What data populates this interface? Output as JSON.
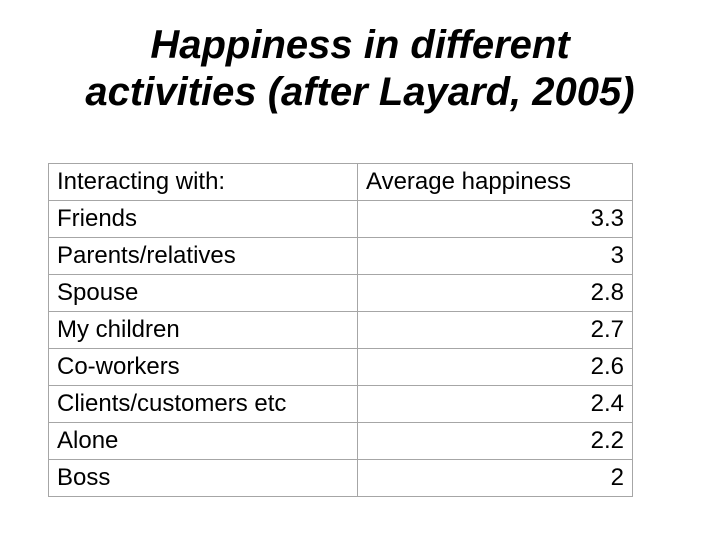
{
  "slide": {
    "title_line1": "Happiness in different",
    "title_line2": "activities (after Layard, 2005)"
  },
  "table": {
    "headers": [
      "Interacting with:",
      "Average happiness"
    ],
    "rows": [
      {
        "label": "Friends",
        "value": "3.3"
      },
      {
        "label": "Parents/relatives",
        "value": "3"
      },
      {
        "label": "Spouse",
        "value": "2.8"
      },
      {
        "label": "My children",
        "value": "2.7"
      },
      {
        "label": "Co-workers",
        "value": "2.6"
      },
      {
        "label": "Clients/customers etc",
        "value": "2.4"
      },
      {
        "label": "Alone",
        "value": "2.2"
      },
      {
        "label": "Boss",
        "value": "2"
      }
    ]
  },
  "colors": {
    "background": "#ffffff",
    "text": "#000000",
    "table_border": "#a6a6a6"
  },
  "chart_data": {
    "type": "table",
    "title": "Happiness in different activities (after Layard, 2005)",
    "columns": [
      "Interacting with:",
      "Average happiness"
    ],
    "categories": [
      "Friends",
      "Parents/relatives",
      "Spouse",
      "My children",
      "Co-workers",
      "Clients/customers etc",
      "Alone",
      "Boss"
    ],
    "values": [
      3.3,
      3,
      2.8,
      2.7,
      2.6,
      2.4,
      2.2,
      2
    ]
  }
}
